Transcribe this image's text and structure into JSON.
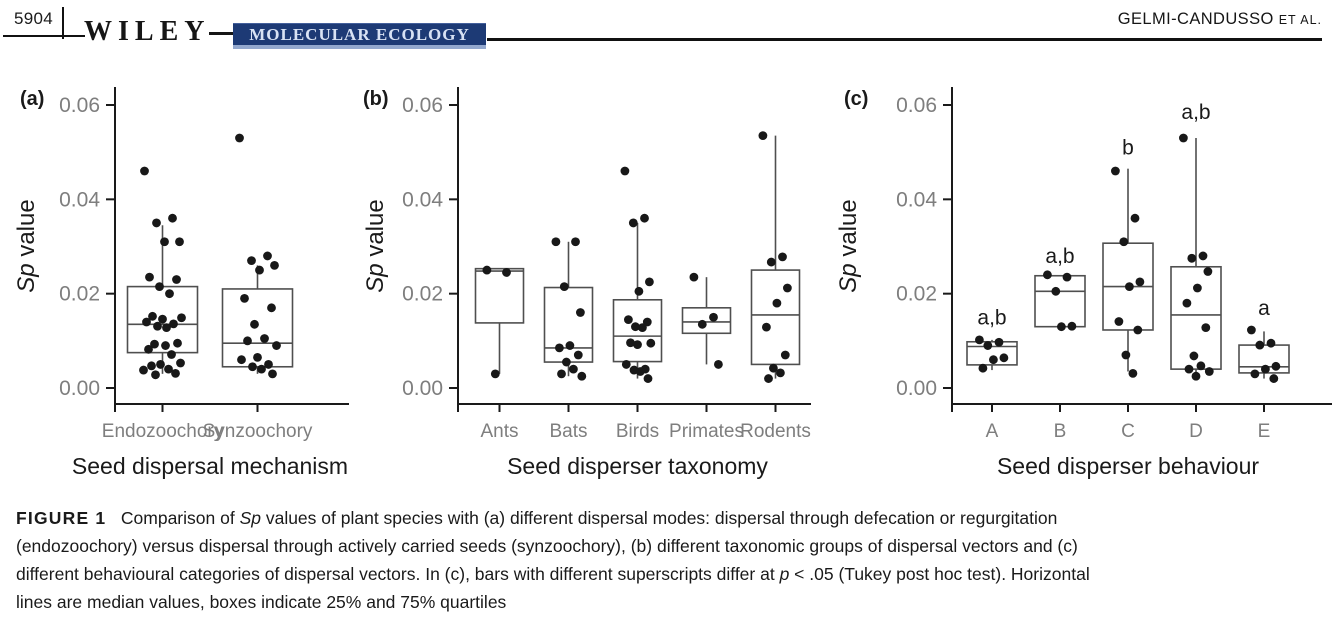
{
  "header": {
    "page_number": "5904",
    "publisher": "WILEY",
    "journal": "MOLECULAR ECOLOGY",
    "running_head_main": "GELMI-CANDUSSO",
    "running_head_suffix": "ET AL."
  },
  "colors": {
    "banner_bg": "#1d3a75",
    "banner_text": "#d8e2f4",
    "banner_underline": "#93a8ce",
    "axis": "#1a1a1a",
    "muted": "#7e7e7e",
    "box": "#4f4f4f",
    "point": "#181818",
    "text": "#1a1a1a"
  },
  "chart_data": [
    {
      "type": "boxplot",
      "panel": "a",
      "ylabel": {
        "italic": "Sp",
        "rest": "value"
      },
      "xlabel": "Seed dispersal mechanism",
      "ylim": [
        0,
        0.06
      ],
      "yticks": [
        {
          "value": 0.0,
          "label": "0.00"
        },
        {
          "value": 0.02,
          "label": "0.02"
        },
        {
          "value": 0.04,
          "label": "0.04"
        },
        {
          "value": 0.06,
          "label": "0.06"
        }
      ],
      "groups": [
        {
          "label": "Endozoochory",
          "box": {
            "q1": 0.0075,
            "median": 0.0135,
            "q3": 0.0215,
            "whisker_low": 0.003,
            "whisker_high": 0.0345
          },
          "points": [
            0.046,
            0.036,
            0.035,
            0.031,
            0.031,
            0.0235,
            0.023,
            0.0215,
            0.02,
            0.0152,
            0.0149,
            0.0146,
            0.014,
            0.0136,
            0.0131,
            0.0128,
            0.0095,
            0.0093,
            0.009,
            0.0082,
            0.0071,
            0.0053,
            0.005,
            0.0047,
            0.004,
            0.0038,
            0.0031,
            0.0028
          ]
        },
        {
          "label": "Synzoochory",
          "box": {
            "q1": 0.0045,
            "median": 0.0095,
            "q3": 0.021,
            "whisker_low": 0.003,
            "whisker_high": 0.026
          },
          "points": [
            0.053,
            0.028,
            0.027,
            0.026,
            0.025,
            0.019,
            0.017,
            0.0135,
            0.0105,
            0.01,
            0.009,
            0.0065,
            0.006,
            0.005,
            0.0045,
            0.004,
            0.003
          ]
        }
      ]
    },
    {
      "type": "boxplot",
      "panel": "b",
      "ylabel": {
        "italic": "Sp",
        "rest": "value"
      },
      "xlabel": "Seed disperser taxonomy",
      "ylim": [
        0,
        0.06
      ],
      "yticks": [
        {
          "value": 0.0,
          "label": "0.00"
        },
        {
          "value": 0.02,
          "label": "0.02"
        },
        {
          "value": 0.04,
          "label": "0.04"
        },
        {
          "value": 0.06,
          "label": "0.06"
        }
      ],
      "groups": [
        {
          "label": "Ants",
          "box": {
            "q1": 0.0138,
            "median": 0.0248,
            "q3": 0.0253,
            "whisker_low": 0.003,
            "whisker_high": 0.0253
          },
          "points": [
            0.025,
            0.0245,
            0.003
          ]
        },
        {
          "label": "Bats",
          "box": {
            "q1": 0.0055,
            "median": 0.0085,
            "q3": 0.0213,
            "whisker_low": 0.0025,
            "whisker_high": 0.031
          },
          "points": [
            0.031,
            0.031,
            0.0215,
            0.016,
            0.009,
            0.0085,
            0.007,
            0.0055,
            0.004,
            0.003,
            0.0025
          ]
        },
        {
          "label": "Birds",
          "box": {
            "q1": 0.0056,
            "median": 0.011,
            "q3": 0.0187,
            "whisker_low": 0.002,
            "whisker_high": 0.035
          },
          "points": [
            0.046,
            0.036,
            0.035,
            0.0225,
            0.0205,
            0.0145,
            0.014,
            0.013,
            0.0128,
            0.0096,
            0.0095,
            0.0092,
            0.005,
            0.004,
            0.0038,
            0.0035,
            0.002
          ]
        },
        {
          "label": "Primates",
          "box": {
            "q1": 0.0116,
            "median": 0.014,
            "q3": 0.017,
            "whisker_low": 0.005,
            "whisker_high": 0.0235
          },
          "points": [
            0.0235,
            0.015,
            0.0135,
            0.005
          ]
        },
        {
          "label": "Rodents",
          "box": {
            "q1": 0.005,
            "median": 0.0155,
            "q3": 0.025,
            "whisker_low": 0.002,
            "whisker_high": 0.0535
          },
          "points": [
            0.0535,
            0.0278,
            0.0267,
            0.0212,
            0.018,
            0.0129,
            0.007,
            0.0042,
            0.0032,
            0.002
          ]
        }
      ]
    },
    {
      "type": "boxplot",
      "panel": "c",
      "ylabel": {
        "italic": "Sp",
        "rest": "value"
      },
      "xlabel": "Seed disperser behaviour",
      "ylim": [
        0,
        0.06
      ],
      "yticks": [
        {
          "value": 0.0,
          "label": "0.00"
        },
        {
          "value": 0.02,
          "label": "0.02"
        },
        {
          "value": 0.04,
          "label": "0.04"
        },
        {
          "value": 0.06,
          "label": "0.06"
        }
      ],
      "groups": [
        {
          "label": "A",
          "sig": "a,b",
          "sig_y": 0.0135,
          "box": {
            "q1": 0.0049,
            "median": 0.0088,
            "q3": 0.0098,
            "whisker_low": 0.0038,
            "whisker_high": 0.0102
          },
          "points": [
            0.0102,
            0.0097,
            0.009,
            0.0064,
            0.006,
            0.0042
          ]
        },
        {
          "label": "B",
          "sig": "a,b",
          "sig_y": 0.0265,
          "box": {
            "q1": 0.013,
            "median": 0.0205,
            "q3": 0.0238,
            "whisker_low": 0.013,
            "whisker_high": 0.0238
          },
          "points": [
            0.024,
            0.0235,
            0.0205,
            0.0131,
            0.013
          ]
        },
        {
          "label": "C",
          "sig": "b",
          "sig_y": 0.0495,
          "box": {
            "q1": 0.0123,
            "median": 0.0215,
            "q3": 0.0307,
            "whisker_low": 0.0035,
            "whisker_high": 0.0465
          },
          "points": [
            0.046,
            0.036,
            0.031,
            0.0225,
            0.0215,
            0.0141,
            0.0123,
            0.007,
            0.0031
          ]
        },
        {
          "label": "D",
          "sig": "a,b",
          "sig_y": 0.057,
          "box": {
            "q1": 0.004,
            "median": 0.0155,
            "q3": 0.0257,
            "whisker_low": 0.0025,
            "whisker_high": 0.053
          },
          "points": [
            0.053,
            0.028,
            0.0275,
            0.0247,
            0.0212,
            0.018,
            0.0128,
            0.0068,
            0.0047,
            0.004,
            0.0035,
            0.0025
          ]
        },
        {
          "label": "E",
          "sig": "a",
          "sig_y": 0.0155,
          "box": {
            "q1": 0.0032,
            "median": 0.0045,
            "q3": 0.0091,
            "whisker_low": 0.002,
            "whisker_high": 0.012
          },
          "points": [
            0.0123,
            0.0095,
            0.0091,
            0.0046,
            0.004,
            0.003,
            0.002
          ]
        }
      ]
    }
  ],
  "caption": {
    "lines": [
      [
        {
          "text": "FIGURE 1",
          "style": "label"
        },
        {
          "text": "   Comparison of ",
          "style": ""
        },
        {
          "text": "Sp",
          "style": "i"
        },
        {
          "text": " values of plant species with (a) different dispersal modes: dispersal through defecation or regurgitation",
          "style": ""
        }
      ],
      [
        {
          "text": "(endozoochory) versus dispersal through actively carried seeds (synzoochory), (b) different taxonomic groups of dispersal vectors and (c)",
          "style": ""
        }
      ],
      [
        {
          "text": "different behavioural categories of dispersal vectors. In (c), bars with different superscripts differ at ",
          "style": ""
        },
        {
          "text": "p",
          "style": "i"
        },
        {
          "text": " < .05 (Tukey post hoc test). Horizontal",
          "style": ""
        }
      ],
      [
        {
          "text": "lines are median values, boxes indicate 25% and 75% quartiles",
          "style": ""
        }
      ]
    ]
  }
}
